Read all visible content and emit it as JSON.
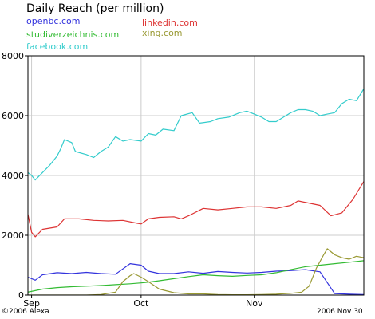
{
  "chart_data": {
    "type": "line",
    "title": "Daily Reach (per million)",
    "x_ticks": [
      "Sep",
      "Oct",
      "Nov"
    ],
    "xlim_days": [
      0,
      92
    ],
    "x_tick_positions_days": [
      1,
      31,
      62
    ],
    "ylim": [
      0,
      8000
    ],
    "y_ticks": [
      0,
      2000,
      4000,
      6000,
      8000
    ],
    "grid": true,
    "legend_position": "top-left",
    "series": [
      {
        "name": "openbc.com",
        "color": "#3333dd",
        "points": [
          [
            0,
            600
          ],
          [
            2,
            500
          ],
          [
            4,
            680
          ],
          [
            8,
            750
          ],
          [
            12,
            720
          ],
          [
            16,
            760
          ],
          [
            20,
            720
          ],
          [
            24,
            700
          ],
          [
            28,
            1050
          ],
          [
            31,
            1000
          ],
          [
            33,
            800
          ],
          [
            36,
            720
          ],
          [
            40,
            720
          ],
          [
            44,
            780
          ],
          [
            48,
            730
          ],
          [
            52,
            790
          ],
          [
            56,
            760
          ],
          [
            60,
            740
          ],
          [
            64,
            760
          ],
          [
            68,
            800
          ],
          [
            72,
            820
          ],
          [
            76,
            850
          ],
          [
            80,
            780
          ],
          [
            84,
            50
          ],
          [
            88,
            30
          ],
          [
            92,
            20
          ]
        ]
      },
      {
        "name": "linkedin.com",
        "color": "#dd3333",
        "points": [
          [
            0,
            2700
          ],
          [
            1,
            2100
          ],
          [
            2,
            1950
          ],
          [
            4,
            2200
          ],
          [
            8,
            2280
          ],
          [
            10,
            2550
          ],
          [
            14,
            2550
          ],
          [
            18,
            2500
          ],
          [
            22,
            2480
          ],
          [
            26,
            2500
          ],
          [
            30,
            2400
          ],
          [
            31,
            2380
          ],
          [
            33,
            2550
          ],
          [
            36,
            2600
          ],
          [
            40,
            2620
          ],
          [
            42,
            2550
          ],
          [
            44,
            2650
          ],
          [
            48,
            2900
          ],
          [
            52,
            2850
          ],
          [
            56,
            2900
          ],
          [
            60,
            2950
          ],
          [
            64,
            2950
          ],
          [
            68,
            2900
          ],
          [
            72,
            3000
          ],
          [
            74,
            3150
          ],
          [
            78,
            3050
          ],
          [
            80,
            3000
          ],
          [
            83,
            2650
          ],
          [
            86,
            2750
          ],
          [
            89,
            3200
          ],
          [
            92,
            3800
          ]
        ]
      },
      {
        "name": "studiverzeichnis.com",
        "color": "#33bb33",
        "points": [
          [
            0,
            100
          ],
          [
            4,
            200
          ],
          [
            8,
            250
          ],
          [
            12,
            280
          ],
          [
            16,
            300
          ],
          [
            20,
            320
          ],
          [
            24,
            350
          ],
          [
            28,
            380
          ],
          [
            32,
            420
          ],
          [
            36,
            480
          ],
          [
            40,
            550
          ],
          [
            44,
            620
          ],
          [
            48,
            680
          ],
          [
            52,
            650
          ],
          [
            56,
            630
          ],
          [
            60,
            660
          ],
          [
            64,
            680
          ],
          [
            68,
            750
          ],
          [
            72,
            850
          ],
          [
            76,
            950
          ],
          [
            80,
            1000
          ],
          [
            84,
            1050
          ],
          [
            88,
            1100
          ],
          [
            92,
            1150
          ]
        ]
      },
      {
        "name": "xing.com",
        "color": "#999933",
        "points": [
          [
            0,
            0
          ],
          [
            16,
            0
          ],
          [
            20,
            20
          ],
          [
            24,
            100
          ],
          [
            26,
            450
          ],
          [
            28,
            650
          ],
          [
            29,
            720
          ],
          [
            31,
            600
          ],
          [
            33,
            450
          ],
          [
            36,
            200
          ],
          [
            40,
            80
          ],
          [
            44,
            40
          ],
          [
            48,
            40
          ],
          [
            52,
            20
          ],
          [
            56,
            10
          ],
          [
            60,
            10
          ],
          [
            64,
            20
          ],
          [
            68,
            30
          ],
          [
            72,
            60
          ],
          [
            75,
            100
          ],
          [
            77,
            300
          ],
          [
            79,
            900
          ],
          [
            81,
            1350
          ],
          [
            82,
            1550
          ],
          [
            84,
            1350
          ],
          [
            86,
            1250
          ],
          [
            88,
            1200
          ],
          [
            90,
            1300
          ],
          [
            92,
            1250
          ]
        ]
      },
      {
        "name": "facebook.com",
        "color": "#33cccc",
        "points": [
          [
            0,
            4100
          ],
          [
            1,
            4000
          ],
          [
            2,
            3850
          ],
          [
            4,
            4100
          ],
          [
            6,
            4350
          ],
          [
            8,
            4650
          ],
          [
            9,
            4900
          ],
          [
            10,
            5200
          ],
          [
            12,
            5100
          ],
          [
            13,
            4800
          ],
          [
            16,
            4700
          ],
          [
            18,
            4600
          ],
          [
            20,
            4800
          ],
          [
            22,
            4950
          ],
          [
            24,
            5300
          ],
          [
            26,
            5150
          ],
          [
            28,
            5200
          ],
          [
            31,
            5150
          ],
          [
            33,
            5400
          ],
          [
            35,
            5350
          ],
          [
            37,
            5550
          ],
          [
            40,
            5500
          ],
          [
            42,
            6000
          ],
          [
            45,
            6100
          ],
          [
            47,
            5750
          ],
          [
            50,
            5800
          ],
          [
            52,
            5900
          ],
          [
            55,
            5950
          ],
          [
            58,
            6100
          ],
          [
            60,
            6150
          ],
          [
            62,
            6050
          ],
          [
            64,
            5950
          ],
          [
            66,
            5800
          ],
          [
            68,
            5800
          ],
          [
            70,
            5950
          ],
          [
            72,
            6100
          ],
          [
            74,
            6200
          ],
          [
            76,
            6200
          ],
          [
            78,
            6150
          ],
          [
            80,
            6000
          ],
          [
            82,
            6050
          ],
          [
            84,
            6100
          ],
          [
            86,
            6400
          ],
          [
            88,
            6550
          ],
          [
            90,
            6500
          ],
          [
            92,
            6900
          ]
        ]
      }
    ],
    "footer_left": "©2006 Alexa",
    "footer_right": "2006 Nov 30"
  }
}
